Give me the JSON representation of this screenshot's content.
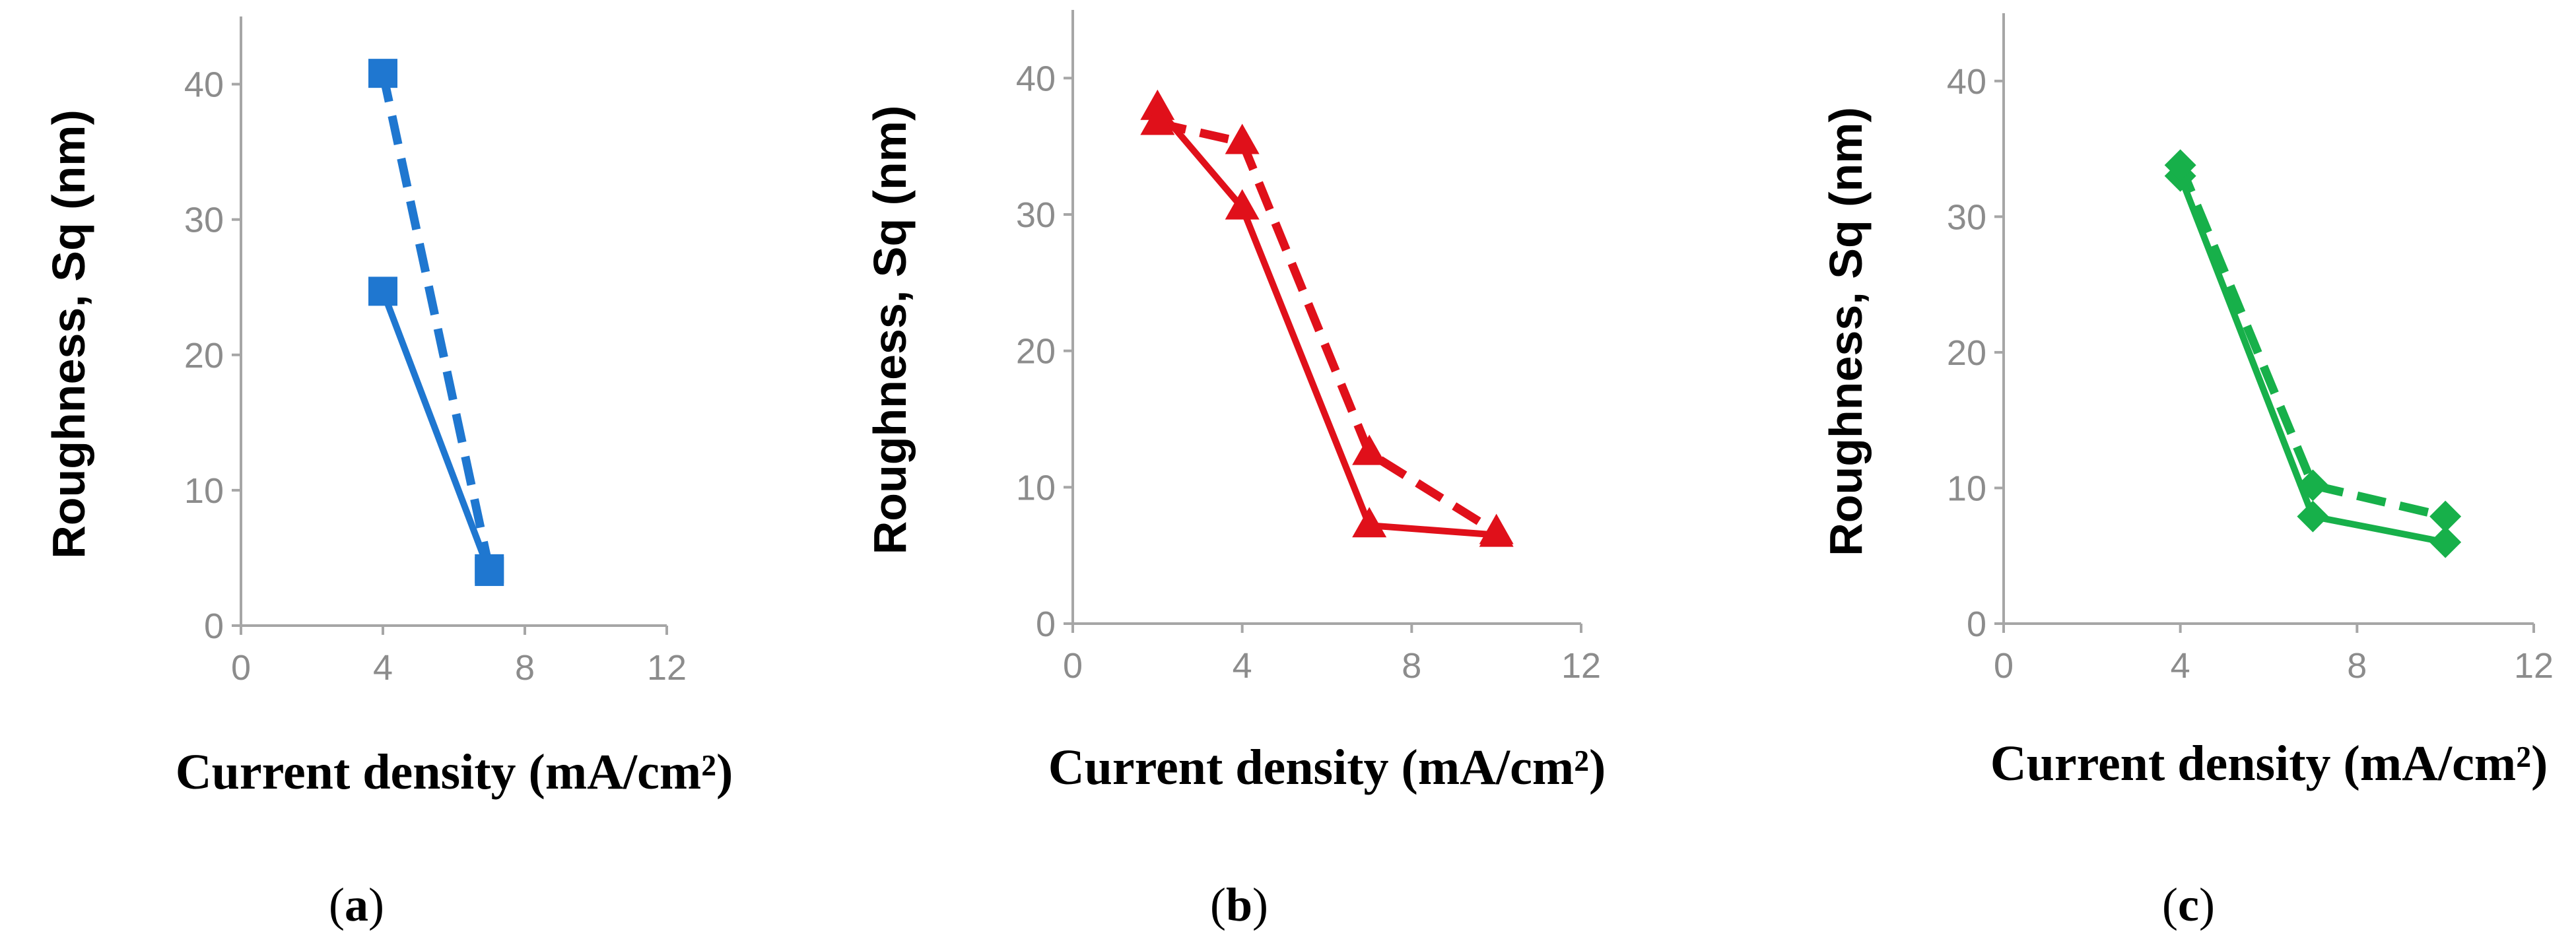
{
  "chart_data": [
    {
      "type": "line",
      "panel_label": "a",
      "xlabel": "Current density (mA/cm²)",
      "ylabel": "Roughness, Sq (nm)",
      "xlim": [
        0,
        12
      ],
      "ylim": [
        0,
        45
      ],
      "x_ticks": [
        "0",
        "4",
        "8",
        "12"
      ],
      "y_ticks": [
        "0",
        "10",
        "20",
        "30",
        "40"
      ],
      "grid": false,
      "marker": "square",
      "color": "#1f77d0",
      "series": [
        {
          "style": "solid",
          "x": [
            4,
            7
          ],
          "y": [
            24.7,
            4.0
          ]
        },
        {
          "style": "dashed",
          "x": [
            4,
            7
          ],
          "y": [
            40.8,
            4.2
          ]
        }
      ]
    },
    {
      "type": "line",
      "panel_label": "b",
      "xlabel": "Current density (mA/cm²)",
      "ylabel": "Roughness, Sq (nm)",
      "xlim": [
        0,
        12
      ],
      "ylim": [
        0,
        45
      ],
      "x_ticks": [
        "0",
        "4",
        "8",
        "12"
      ],
      "y_ticks": [
        "0",
        "10",
        "20",
        "30",
        "40"
      ],
      "grid": false,
      "marker": "triangle",
      "color": "#e0101a",
      "series": [
        {
          "style": "solid",
          "x": [
            2,
            4,
            7,
            10
          ],
          "y": [
            37.8,
            30.5,
            7.2,
            6.5
          ]
        },
        {
          "style": "dashed",
          "x": [
            2,
            4,
            7,
            10
          ],
          "y": [
            36.7,
            35.3,
            12.5,
            6.7
          ]
        }
      ]
    },
    {
      "type": "line",
      "panel_label": "c",
      "xlabel": "Current density (mA/cm²)",
      "ylabel": "Roughness, Sq (nm)",
      "xlim": [
        0,
        12
      ],
      "ylim": [
        0,
        45
      ],
      "x_ticks": [
        "0",
        "4",
        "8",
        "12"
      ],
      "y_ticks": [
        "0",
        "10",
        "20",
        "30",
        "40"
      ],
      "grid": false,
      "marker": "diamond",
      "color": "#17b04a",
      "series": [
        {
          "style": "solid",
          "x": [
            4,
            7,
            10
          ],
          "y": [
            33.0,
            7.9,
            6.0
          ]
        },
        {
          "style": "dashed",
          "x": [
            4,
            7,
            10
          ],
          "y": [
            33.8,
            10.2,
            7.9
          ]
        }
      ]
    }
  ]
}
